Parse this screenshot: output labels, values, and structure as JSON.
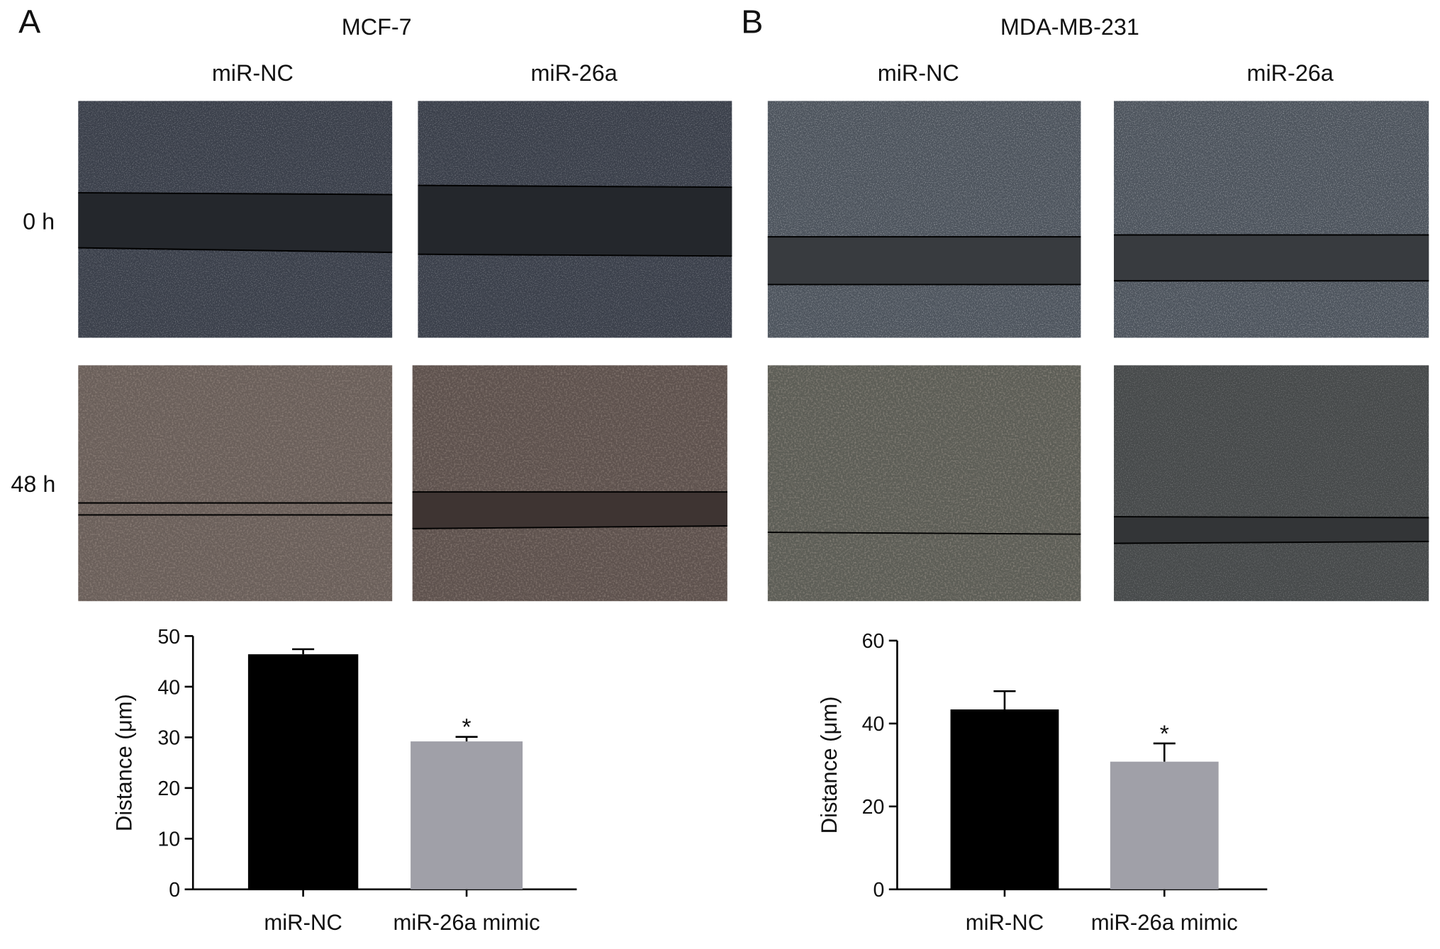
{
  "panels": [
    {
      "label": "A",
      "title": "MCF-7",
      "columns": [
        "miR-NC",
        "miR-26a"
      ]
    },
    {
      "label": "B",
      "title": "MDA-MB-231",
      "columns": [
        "miR-NC",
        "miR-26a"
      ]
    }
  ],
  "rows": [
    "0 h",
    "48 h"
  ],
  "chart_data": [
    {
      "type": "bar",
      "ylabel": "Distance (μm)",
      "categories": [
        "miR-NC",
        "miR-26a mimic"
      ],
      "values": [
        46.4,
        29.2
      ],
      "errors": [
        1.0,
        0.9
      ],
      "significance": [
        null,
        "*"
      ],
      "colors": [
        "#000000",
        "#a0a0a8"
      ],
      "ylim": [
        0,
        50
      ],
      "yticks": [
        0,
        10,
        20,
        30,
        40,
        50
      ]
    },
    {
      "type": "bar",
      "ylabel": "Distance (μm)",
      "categories": [
        "miR-NC",
        "miR-26a mimic"
      ],
      "values": [
        43.4,
        30.8
      ],
      "errors": [
        4.4,
        4.4
      ],
      "significance": [
        null,
        "*"
      ],
      "colors": [
        "#000000",
        "#a0a0a8"
      ],
      "ylim": [
        0,
        60
      ],
      "yticks": [
        0,
        20,
        40,
        60
      ]
    }
  ]
}
